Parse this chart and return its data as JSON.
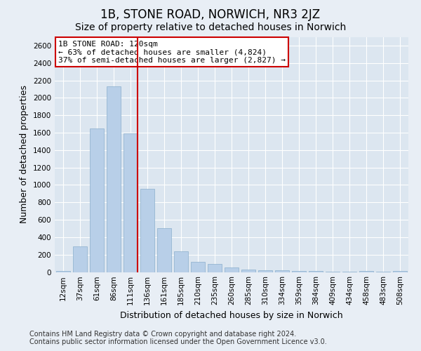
{
  "title": "1B, STONE ROAD, NORWICH, NR3 2JZ",
  "subtitle": "Size of property relative to detached houses in Norwich",
  "xlabel": "Distribution of detached houses by size in Norwich",
  "ylabel": "Number of detached properties",
  "footer_line1": "Contains HM Land Registry data © Crown copyright and database right 2024.",
  "footer_line2": "Contains public sector information licensed under the Open Government Licence v3.0.",
  "bar_labels": [
    "12sqm",
    "37sqm",
    "61sqm",
    "86sqm",
    "111sqm",
    "136sqm",
    "161sqm",
    "185sqm",
    "210sqm",
    "235sqm",
    "260sqm",
    "285sqm",
    "310sqm",
    "334sqm",
    "359sqm",
    "384sqm",
    "409sqm",
    "434sqm",
    "458sqm",
    "483sqm",
    "508sqm"
  ],
  "bar_values": [
    15,
    295,
    1650,
    2130,
    1590,
    955,
    500,
    235,
    115,
    95,
    50,
    30,
    22,
    18,
    15,
    12,
    8,
    5,
    12,
    5,
    15
  ],
  "bar_color": "#b8cfe8",
  "bar_edge_color": "#8aaecc",
  "annotation_title": "1B STONE ROAD: 120sqm",
  "annotation_line1": "← 63% of detached houses are smaller (4,824)",
  "annotation_line2": "37% of semi-detached houses are larger (2,827) →",
  "annotation_box_color": "#cc0000",
  "red_line_x": 4.42,
  "ylim": [
    0,
    2700
  ],
  "yticks": [
    0,
    200,
    400,
    600,
    800,
    1000,
    1200,
    1400,
    1600,
    1800,
    2000,
    2200,
    2400,
    2600
  ],
  "bg_color": "#e8eef5",
  "plot_bg_color": "#dce6f0",
  "title_fontsize": 12,
  "subtitle_fontsize": 10,
  "axis_label_fontsize": 9,
  "tick_fontsize": 7.5,
  "footer_fontsize": 7
}
